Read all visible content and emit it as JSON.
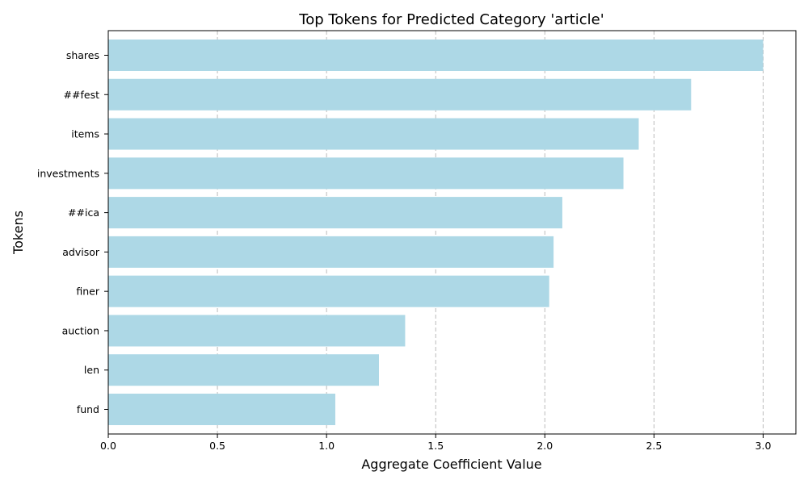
{
  "chart_data": {
    "type": "bar",
    "orientation": "horizontal",
    "title": "Top Tokens for Predicted Category 'article'",
    "xlabel": "Aggregate Coefficient Value",
    "ylabel": "Tokens",
    "categories": [
      "shares",
      "##fest",
      "items",
      "investments",
      "##ica",
      "advisor",
      "finer",
      "auction",
      "len",
      "fund"
    ],
    "values": [
      3.0,
      2.67,
      2.43,
      2.36,
      2.08,
      2.04,
      2.02,
      1.36,
      1.24,
      1.04
    ],
    "xlim": [
      0,
      3.15
    ],
    "xticks": [
      0.0,
      0.5,
      1.0,
      1.5,
      2.0,
      2.5,
      3.0
    ],
    "xtick_labels": [
      "0.0",
      "0.5",
      "1.0",
      "1.5",
      "2.0",
      "2.5",
      "3.0"
    ],
    "grid": "x-axis, dashed",
    "bar_color": "#add8e6"
  }
}
